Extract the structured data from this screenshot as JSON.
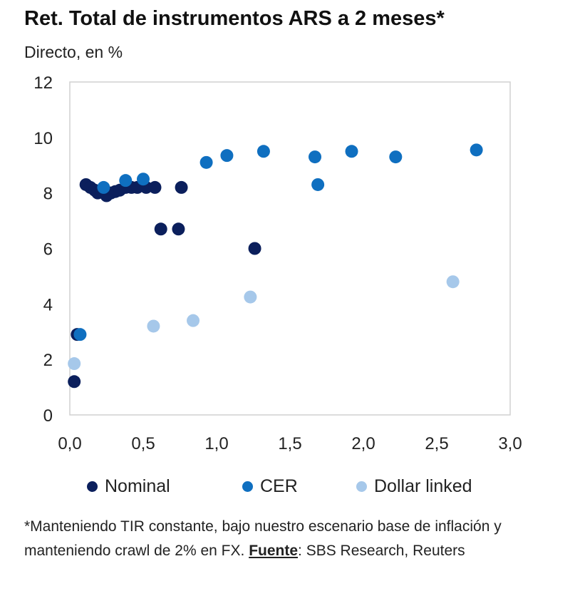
{
  "header": {
    "title": "Ret. Total de instrumentos ARS a 2 meses*",
    "subtitle": "Directo, en %"
  },
  "footnote": {
    "text_before": "*Manteniendo TIR constante, bajo nuestro escenario base de inflación y manteniendo crawl de 2% en FX. ",
    "source_label": "Fuente",
    "text_after": ": SBS Research, Reuters"
  },
  "colors": {
    "nominal": "#0b1f5c",
    "cer": "#0f6fc0",
    "dollar_linked": "#a6c8ea",
    "plot_border": "#d0d0d0"
  },
  "chart_data": {
    "type": "scatter",
    "title": "Ret. Total de instrumentos ARS a 2 meses*",
    "subtitle": "Directo, en %",
    "xlabel": "",
    "ylabel": "",
    "xlim": [
      0,
      3
    ],
    "ylim": [
      0,
      12
    ],
    "x_ticks": [
      "0,0",
      "0,5",
      "1,0",
      "1,5",
      "2,0",
      "2,5",
      "3,0"
    ],
    "y_ticks": [
      "0",
      "2",
      "4",
      "6",
      "8",
      "10",
      "12"
    ],
    "x_tick_values": [
      0,
      0.5,
      1.0,
      1.5,
      2.0,
      2.5,
      3.0
    ],
    "y_tick_values": [
      0,
      2,
      4,
      6,
      8,
      10,
      12
    ],
    "grid": false,
    "legend_position": "bottom",
    "series": [
      {
        "name": "Nominal",
        "color": "#0b1f5c",
        "points": [
          [
            0.03,
            1.2
          ],
          [
            0.05,
            2.9
          ],
          [
            0.11,
            8.3
          ],
          [
            0.14,
            8.2
          ],
          [
            0.17,
            8.1
          ],
          [
            0.19,
            8.0
          ],
          [
            0.22,
            8.05
          ],
          [
            0.25,
            7.9
          ],
          [
            0.28,
            8.0
          ],
          [
            0.31,
            8.05
          ],
          [
            0.34,
            8.1
          ],
          [
            0.38,
            8.2
          ],
          [
            0.42,
            8.2
          ],
          [
            0.46,
            8.2
          ],
          [
            0.52,
            8.2
          ],
          [
            0.58,
            8.2
          ],
          [
            0.62,
            6.7
          ],
          [
            0.74,
            6.7
          ],
          [
            0.76,
            8.2
          ],
          [
            1.26,
            6.0
          ]
        ]
      },
      {
        "name": "CER",
        "color": "#0f6fc0",
        "points": [
          [
            0.07,
            2.9
          ],
          [
            0.23,
            8.2
          ],
          [
            0.38,
            8.45
          ],
          [
            0.5,
            8.5
          ],
          [
            0.93,
            9.1
          ],
          [
            1.07,
            9.35
          ],
          [
            1.32,
            9.5
          ],
          [
            1.67,
            9.3
          ],
          [
            1.69,
            8.3
          ],
          [
            1.92,
            9.5
          ],
          [
            2.22,
            9.3
          ],
          [
            2.77,
            9.55
          ]
        ]
      },
      {
        "name": "Dollar linked",
        "color": "#a6c8ea",
        "points": [
          [
            0.03,
            1.85
          ],
          [
            0.57,
            3.2
          ],
          [
            0.84,
            3.4
          ],
          [
            1.23,
            4.25
          ],
          [
            2.61,
            4.8
          ]
        ]
      }
    ]
  }
}
